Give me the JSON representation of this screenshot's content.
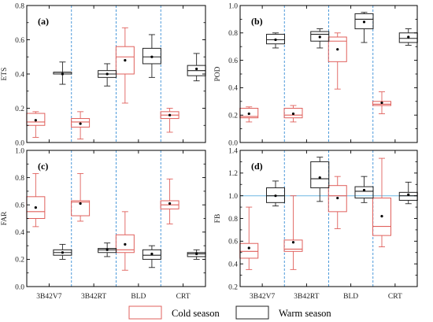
{
  "colors": {
    "cold": "#e0605c",
    "warm": "#222222",
    "divider": "#3a8fd6",
    "refline": "#7fbfe6",
    "frame": "#000000"
  },
  "legend": {
    "cold_label": "Cold season",
    "warm_label": "Warm season",
    "placement": "bottom-center"
  },
  "chart_data": [
    {
      "type": "box",
      "panel": "(a)",
      "ylabel": "ETS",
      "ylim": [
        0.0,
        0.8
      ],
      "yticks": [
        "0.0",
        "0.2",
        "0.4",
        "0.6",
        "0.8"
      ],
      "yticks_values": [
        0,
        0.2,
        0.4,
        0.6,
        0.8
      ],
      "categories": [
        "3B42V7",
        "3B42RT",
        "BLD",
        "CRT"
      ],
      "show_xticklabels": false,
      "series": [
        {
          "name": "Cold season",
          "boxes": [
            {
              "whislo": 0.03,
              "q1": 0.1,
              "med": 0.12,
              "q3": 0.17,
              "whishi": 0.18,
              "mean": 0.13
            },
            {
              "whislo": 0.02,
              "q1": 0.09,
              "med": 0.12,
              "q3": 0.14,
              "whishi": 0.18,
              "mean": 0.11
            },
            {
              "whislo": 0.23,
              "q1": 0.4,
              "med": 0.5,
              "q3": 0.56,
              "whishi": 0.67,
              "mean": 0.48
            },
            {
              "whislo": 0.06,
              "q1": 0.14,
              "med": 0.16,
              "q3": 0.18,
              "whishi": 0.2,
              "mean": 0.16
            }
          ]
        },
        {
          "name": "Warm season",
          "boxes": [
            {
              "whislo": 0.34,
              "q1": 0.4,
              "med": 0.41,
              "q3": 0.41,
              "whishi": 0.47,
              "mean": 0.4
            },
            {
              "whislo": 0.33,
              "q1": 0.38,
              "med": 0.4,
              "q3": 0.42,
              "whishi": 0.46,
              "mean": 0.4
            },
            {
              "whislo": 0.38,
              "q1": 0.46,
              "med": 0.5,
              "q3": 0.55,
              "whishi": 0.63,
              "mean": 0.5
            },
            {
              "whislo": 0.36,
              "q1": 0.39,
              "med": 0.42,
              "q3": 0.45,
              "whishi": 0.52,
              "mean": 0.43
            }
          ]
        }
      ]
    },
    {
      "type": "box",
      "panel": "(b)",
      "ylabel": "POD",
      "ylim": [
        0.0,
        1.0
      ],
      "yticks": [
        "0.0",
        "0.2",
        "0.4",
        "0.6",
        "0.8",
        "1.0"
      ],
      "yticks_values": [
        0,
        0.2,
        0.4,
        0.6,
        0.8,
        1.0
      ],
      "categories": [
        "3B42V7",
        "3B42RT",
        "BLD",
        "CRT"
      ],
      "show_xticklabels": false,
      "series": [
        {
          "name": "Cold season",
          "boxes": [
            {
              "whislo": 0.15,
              "q1": 0.18,
              "med": 0.19,
              "q3": 0.25,
              "whishi": 0.26,
              "mean": 0.21
            },
            {
              "whislo": 0.15,
              "q1": 0.18,
              "med": 0.2,
              "q3": 0.25,
              "whishi": 0.27,
              "mean": 0.21
            },
            {
              "whislo": 0.39,
              "q1": 0.59,
              "med": 0.74,
              "q3": 0.77,
              "whishi": 0.8,
              "mean": 0.68
            },
            {
              "whislo": 0.21,
              "q1": 0.27,
              "med": 0.28,
              "q3": 0.3,
              "whishi": 0.37,
              "mean": 0.29
            }
          ]
        },
        {
          "name": "Warm season",
          "boxes": [
            {
              "whislo": 0.69,
              "q1": 0.72,
              "med": 0.75,
              "q3": 0.79,
              "whishi": 0.8,
              "mean": 0.75
            },
            {
              "whislo": 0.69,
              "q1": 0.74,
              "med": 0.79,
              "q3": 0.81,
              "whishi": 0.83,
              "mean": 0.77
            },
            {
              "whislo": 0.73,
              "q1": 0.83,
              "med": 0.9,
              "q3": 0.94,
              "whishi": 0.95,
              "mean": 0.88
            },
            {
              "whislo": 0.71,
              "q1": 0.73,
              "med": 0.76,
              "q3": 0.8,
              "whishi": 0.83,
              "mean": 0.77
            }
          ]
        }
      ]
    },
    {
      "type": "box",
      "panel": "(c)",
      "ylabel": "FAR",
      "ylim": [
        0.0,
        1.0
      ],
      "yticks": [
        "0.0",
        "0.2",
        "0.4",
        "0.6",
        "0.8",
        "1.0"
      ],
      "yticks_values": [
        0,
        0.2,
        0.4,
        0.6,
        0.8,
        1.0
      ],
      "categories": [
        "3B42V7",
        "3B42RT",
        "BLD",
        "CRT"
      ],
      "show_xticklabels": true,
      "series": [
        {
          "name": "Cold season",
          "boxes": [
            {
              "whislo": 0.44,
              "q1": 0.5,
              "med": 0.55,
              "q3": 0.66,
              "whishi": 0.83,
              "mean": 0.58
            },
            {
              "whislo": 0.48,
              "q1": 0.52,
              "med": 0.62,
              "q3": 0.63,
              "whishi": 0.83,
              "mean": 0.61
            },
            {
              "whislo": 0.12,
              "q1": 0.25,
              "med": 0.27,
              "q3": 0.38,
              "whishi": 0.55,
              "mean": 0.31
            },
            {
              "whislo": 0.46,
              "q1": 0.57,
              "med": 0.6,
              "q3": 0.63,
              "whishi": 0.79,
              "mean": 0.61
            }
          ]
        },
        {
          "name": "Warm season",
          "boxes": [
            {
              "whislo": 0.2,
              "q1": 0.23,
              "med": 0.25,
              "q3": 0.27,
              "whishi": 0.31,
              "mean": 0.25
            },
            {
              "whislo": 0.22,
              "q1": 0.25,
              "med": 0.27,
              "q3": 0.28,
              "whishi": 0.32,
              "mean": 0.27
            },
            {
              "whislo": 0.14,
              "q1": 0.2,
              "med": 0.23,
              "q3": 0.27,
              "whishi": 0.3,
              "mean": 0.24
            },
            {
              "whislo": 0.2,
              "q1": 0.22,
              "med": 0.24,
              "q3": 0.25,
              "whishi": 0.27,
              "mean": 0.24
            }
          ]
        }
      ]
    },
    {
      "type": "box",
      "panel": "(d)",
      "ylabel": "FB",
      "ylim": [
        0.2,
        1.4
      ],
      "yticks": [
        "0.2",
        "0.4",
        "0.6",
        "0.8",
        "1.0",
        "1.2",
        "1.4"
      ],
      "yticks_values": [
        0.2,
        0.4,
        0.6,
        0.8,
        1.0,
        1.2,
        1.4
      ],
      "reference_line": 1.0,
      "categories": [
        "3B42V7",
        "3B42RT",
        "BLD",
        "CRT"
      ],
      "show_xticklabels": true,
      "series": [
        {
          "name": "Cold season",
          "boxes": [
            {
              "whislo": 0.35,
              "q1": 0.45,
              "med": 0.51,
              "q3": 0.58,
              "whishi": 0.9,
              "mean": 0.54
            },
            {
              "whislo": 0.35,
              "q1": 0.51,
              "med": 0.53,
              "q3": 0.61,
              "whishi": 1.0,
              "mean": 0.59
            },
            {
              "whislo": 0.71,
              "q1": 0.86,
              "med": 1.0,
              "q3": 1.09,
              "whishi": 1.17,
              "mean": 0.98
            },
            {
              "whislo": 0.55,
              "q1": 0.65,
              "med": 0.73,
              "q3": 0.98,
              "whishi": 1.33,
              "mean": 0.82
            }
          ]
        },
        {
          "name": "Warm season",
          "boxes": [
            {
              "whislo": 0.91,
              "q1": 0.94,
              "med": 1.0,
              "q3": 1.07,
              "whishi": 1.13,
              "mean": 1.0
            },
            {
              "whislo": 0.95,
              "q1": 1.07,
              "med": 1.15,
              "q3": 1.3,
              "whishi": 1.34,
              "mean": 1.16
            },
            {
              "whislo": 0.94,
              "q1": 0.98,
              "med": 1.04,
              "q3": 1.08,
              "whishi": 1.17,
              "mean": 1.05
            },
            {
              "whislo": 0.93,
              "q1": 0.96,
              "med": 1.0,
              "q3": 1.03,
              "whishi": 1.12,
              "mean": 1.01
            }
          ]
        }
      ]
    }
  ]
}
